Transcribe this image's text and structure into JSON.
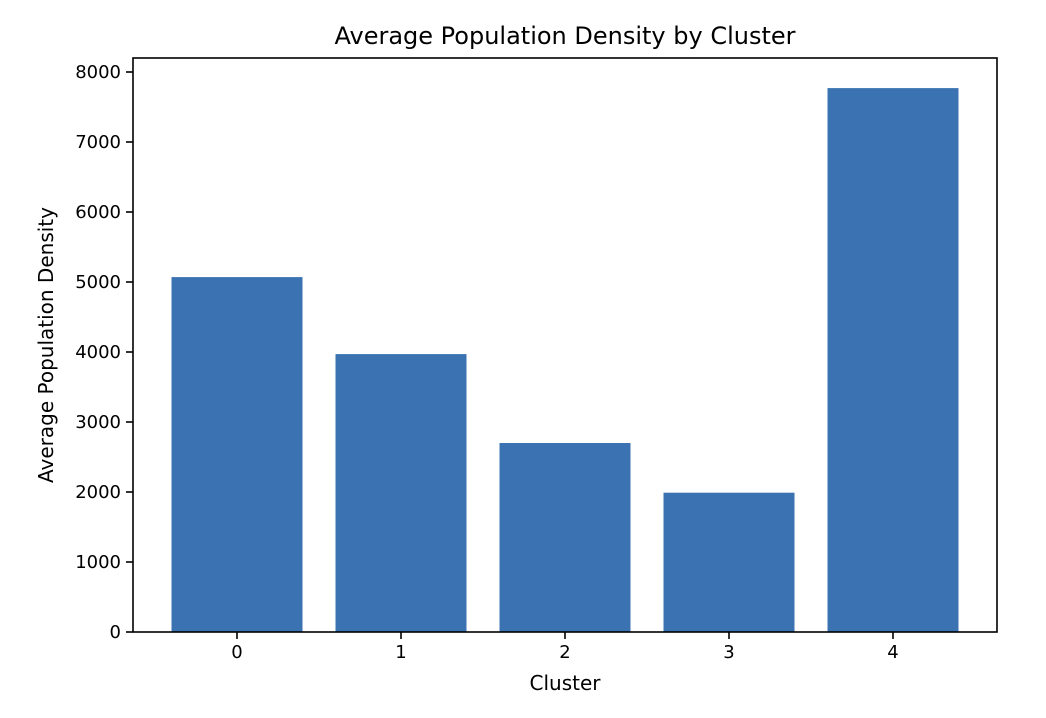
{
  "chart_data": {
    "type": "bar",
    "title": "Average Population Density by Cluster",
    "xlabel": "Cluster",
    "ylabel": "Average Population Density",
    "categories": [
      "0",
      "1",
      "2",
      "3",
      "4"
    ],
    "values": [
      5070,
      3970,
      2700,
      1990,
      7770
    ],
    "ylim": [
      0,
      8200
    ],
    "yticks": [
      "0",
      "1000",
      "2000",
      "3000",
      "4000",
      "5000",
      "6000",
      "7000",
      "8000"
    ],
    "bar_color": "#3b73b2",
    "grid": false,
    "legend": "none"
  }
}
